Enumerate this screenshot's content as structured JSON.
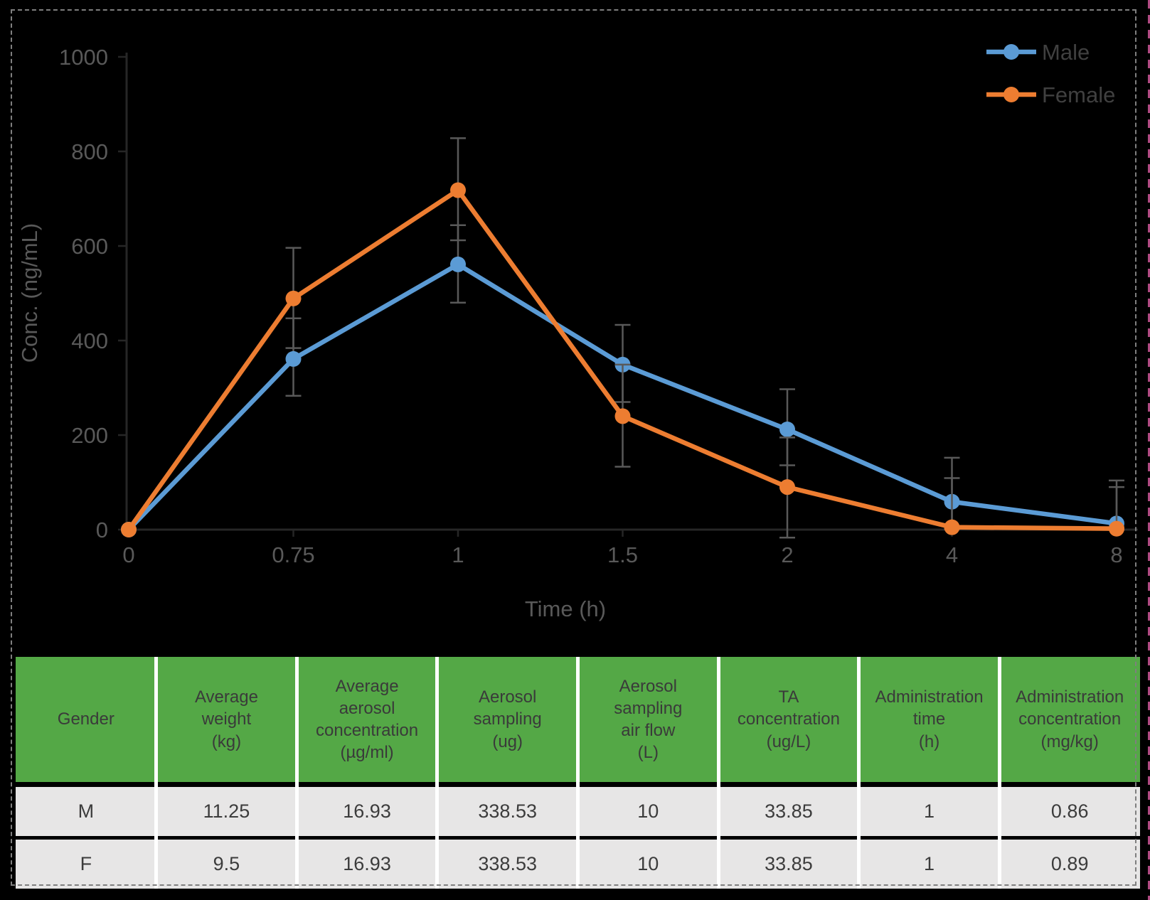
{
  "chart_data": {
    "type": "line",
    "title": "",
    "xlabel": "Time (h)",
    "ylabel": "Conc. (ng/mL)",
    "categories": [
      "0",
      "0.75",
      "1",
      "1.5",
      "2",
      "4",
      "8"
    ],
    "ylim": [
      0,
      1000
    ],
    "yticks": [
      0,
      200,
      400,
      600,
      800,
      1000
    ],
    "grid": false,
    "legend_position": "top-right",
    "error_bar_color": "#595959",
    "axis_color": "#262626",
    "tick_label_color": "#595959",
    "legend_text_color": "#404040",
    "series": [
      {
        "name": "Male",
        "color": "#5B9BD5",
        "values": [
          0,
          361,
          561,
          349,
          212,
          59,
          13
        ],
        "err_up": [
          0,
          86,
          83,
          84,
          85,
          93,
          91
        ],
        "err_down": [
          0,
          78,
          81,
          79,
          76,
          54,
          8
        ]
      },
      {
        "name": "Female",
        "color": "#ED7D31",
        "values": [
          0,
          489,
          718,
          240,
          90,
          5,
          2
        ],
        "err_up": [
          0,
          107,
          110,
          109,
          105,
          104,
          88
        ],
        "err_down": [
          0,
          105,
          106,
          107,
          107,
          4,
          2
        ]
      }
    ]
  },
  "table": {
    "header_bg": "#54A846",
    "row_bg": "#E7E6E6",
    "headers": [
      "Gender",
      "Average\nweight\n(kg)",
      "Average\naerosol\nconcentration\n(µg/ml)",
      "Aerosol\nsampling\n(ug)",
      "Aerosol\nsampling\nair flow\n(L)",
      "TA\nconcentration\n(ug/L)",
      "Administration\ntime\n(h)",
      "Administration\nconcentration\n(mg/kg)"
    ],
    "rows": [
      [
        "M",
        "11.25",
        "16.93",
        "338.53",
        "10",
        "33.85",
        "1",
        "0.86"
      ],
      [
        "F",
        "9.5",
        "16.93",
        "338.53",
        "10",
        "33.85",
        "1",
        "0.89"
      ]
    ]
  }
}
